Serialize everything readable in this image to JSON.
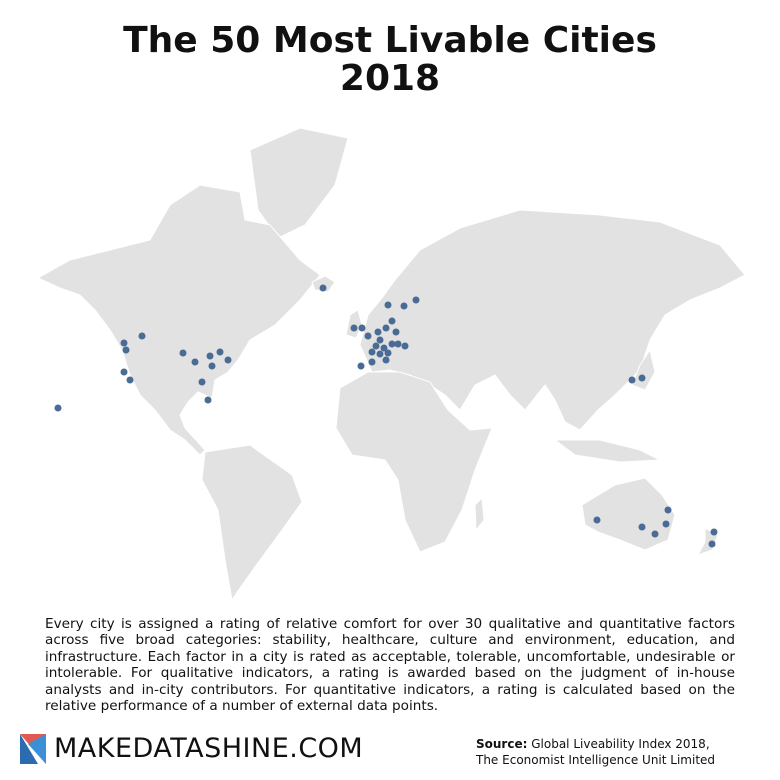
{
  "title": [
    "The 50 Most Livable Cities",
    "2018"
  ],
  "description": "Every city is assigned a rating of relative comfort for over 30 qualitative and quantitative factors across five broad categories: stability, healthcare, culture and environment, education, and infrastructure. Each factor in a city is rated as acceptable, tolerable, uncomfortable, undesirable or intolerable. For qualitative indicators, a rating is awarded based on the judgment of in-house analysts and in-city contributors. For quantitative indicators, a rating is calculated based on the relative performance of a number of external data points.",
  "logo": "MAKEDATASHINE.COM",
  "source": {
    "label": "Source:",
    "lines": [
      "Global Liveability Index 2018,",
      "The Economist Intelligence Unit Limited"
    ]
  }
}
